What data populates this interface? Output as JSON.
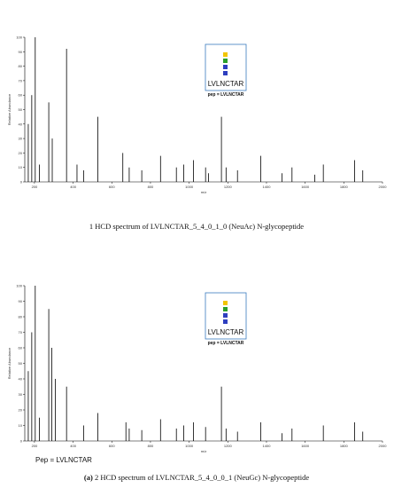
{
  "chart_data": [
    {
      "type": "stem",
      "caption": "1 HCD spectrum of LVLNCTAR_5_4_0_1_0 (NeuAc) N-glycopeptide",
      "x_label": "m/z",
      "y_label": "Relative Abundance",
      "box_label": "LVLNCTAR",
      "box_note": "pep = LVLNCTAR",
      "xlim": [
        150,
        2000
      ],
      "xticks": [
        200,
        400,
        600,
        800,
        1000,
        1200,
        1400,
        1600,
        1800,
        2000
      ],
      "ylim": [
        0,
        100
      ],
      "yticks": [
        0,
        10,
        20,
        30,
        40,
        50,
        60,
        70,
        80,
        90,
        100
      ],
      "color": "#000000",
      "x": [
        168,
        186,
        204,
        226,
        274,
        292,
        366,
        420,
        454,
        528,
        657,
        690,
        755,
        852,
        934,
        972,
        1022,
        1085,
        1100,
        1167,
        1191,
        1250,
        1370,
        1480,
        1532,
        1650,
        1694,
        1856,
        1898
      ],
      "values": [
        40,
        60,
        100,
        12,
        55,
        30,
        92,
        12,
        8,
        45,
        20,
        10,
        8,
        18,
        10,
        12,
        15,
        10,
        6,
        45,
        10,
        8,
        18,
        6,
        10,
        5,
        12,
        15,
        8
      ]
    },
    {
      "type": "stem",
      "caption_tag": "(a)",
      "caption": "2 HCD spectrum of LVLNCTAR_5_4_0_0_1 (NeuGc) N-glycopeptide",
      "x_label": "m/z",
      "y_label": "Relative Abundance",
      "box_label": "LVLNCTAR",
      "box_note": "pep = LVLNCTAR",
      "footer_note": "Pep = LVLNCTAR",
      "xlim": [
        150,
        2000
      ],
      "xticks": [
        200,
        400,
        600,
        800,
        1000,
        1200,
        1400,
        1600,
        1800,
        2000
      ],
      "ylim": [
        0,
        100
      ],
      "yticks": [
        0,
        10,
        20,
        30,
        40,
        50,
        60,
        70,
        80,
        90,
        100
      ],
      "color": "#000000",
      "x": [
        168,
        186,
        204,
        226,
        274,
        290,
        308,
        366,
        454,
        528,
        673,
        690,
        755,
        852,
        934,
        972,
        1022,
        1085,
        1167,
        1191,
        1250,
        1370,
        1480,
        1532,
        1694,
        1856,
        1898
      ],
      "values": [
        45,
        70,
        100,
        15,
        85,
        60,
        40,
        35,
        10,
        18,
        12,
        8,
        7,
        14,
        8,
        10,
        12,
        9,
        35,
        8,
        6,
        12,
        5,
        8,
        10,
        12,
        6
      ]
    }
  ]
}
